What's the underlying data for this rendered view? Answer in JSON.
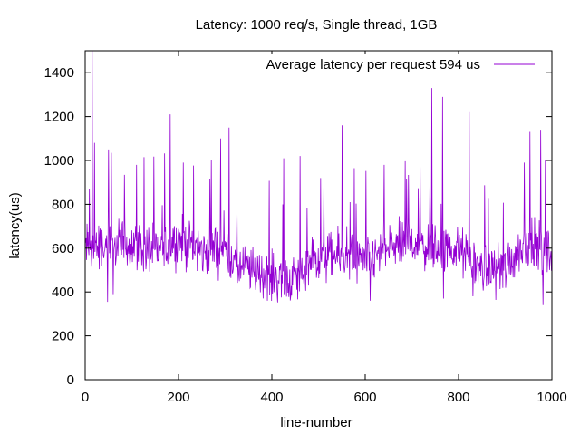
{
  "chart_data": {
    "type": "line",
    "title": "Latency: 1000 req/s, Single thread, 1GB",
    "xlabel": "line-number",
    "ylabel": "latency(us)",
    "xlim": [
      0,
      1000
    ],
    "ylim": [
      0,
      1500
    ],
    "x_ticks": [
      0,
      200,
      400,
      600,
      800,
      1000
    ],
    "y_ticks": [
      0,
      200,
      400,
      600,
      800,
      1000,
      1200,
      1400
    ],
    "grid": false,
    "legend_position": "top-right",
    "series": [
      {
        "name": "Average latency per request 594 us",
        "color": "#9400d3",
        "n_points": 1000,
        "mean": 594,
        "anchors": [
          {
            "x": 0,
            "y": 600
          },
          {
            "x": 100,
            "y": 620
          },
          {
            "x": 150,
            "y": 580
          },
          {
            "x": 200,
            "y": 640
          },
          {
            "x": 250,
            "y": 580
          },
          {
            "x": 300,
            "y": 600
          },
          {
            "x": 320,
            "y": 520
          },
          {
            "x": 400,
            "y": 470
          },
          {
            "x": 450,
            "y": 460
          },
          {
            "x": 500,
            "y": 560
          },
          {
            "x": 550,
            "y": 560
          },
          {
            "x": 600,
            "y": 530
          },
          {
            "x": 650,
            "y": 600
          },
          {
            "x": 700,
            "y": 630
          },
          {
            "x": 750,
            "y": 600
          },
          {
            "x": 800,
            "y": 590
          },
          {
            "x": 850,
            "y": 500
          },
          {
            "x": 900,
            "y": 520
          },
          {
            "x": 950,
            "y": 640
          },
          {
            "x": 1000,
            "y": 560
          }
        ],
        "peaks": [
          {
            "x": 15,
            "y": 1500
          },
          {
            "x": 20,
            "y": 1080
          },
          {
            "x": 50,
            "y": 1050
          },
          {
            "x": 110,
            "y": 980
          },
          {
            "x": 182,
            "y": 1210
          },
          {
            "x": 210,
            "y": 990
          },
          {
            "x": 270,
            "y": 1000
          },
          {
            "x": 290,
            "y": 1100
          },
          {
            "x": 308,
            "y": 1150
          },
          {
            "x": 425,
            "y": 1010
          },
          {
            "x": 460,
            "y": 1020
          },
          {
            "x": 550,
            "y": 1160
          },
          {
            "x": 640,
            "y": 980
          },
          {
            "x": 742,
            "y": 1330
          },
          {
            "x": 765,
            "y": 1290
          },
          {
            "x": 822,
            "y": 1220
          },
          {
            "x": 940,
            "y": 990
          },
          {
            "x": 952,
            "y": 1130
          },
          {
            "x": 975,
            "y": 1140
          },
          {
            "x": 985,
            "y": 1000
          }
        ],
        "troughs": [
          {
            "x": 48,
            "y": 355
          },
          {
            "x": 60,
            "y": 390
          },
          {
            "x": 420,
            "y": 375
          },
          {
            "x": 440,
            "y": 380
          },
          {
            "x": 610,
            "y": 360
          },
          {
            "x": 767,
            "y": 370
          },
          {
            "x": 830,
            "y": 380
          },
          {
            "x": 980,
            "y": 340
          }
        ]
      }
    ]
  }
}
